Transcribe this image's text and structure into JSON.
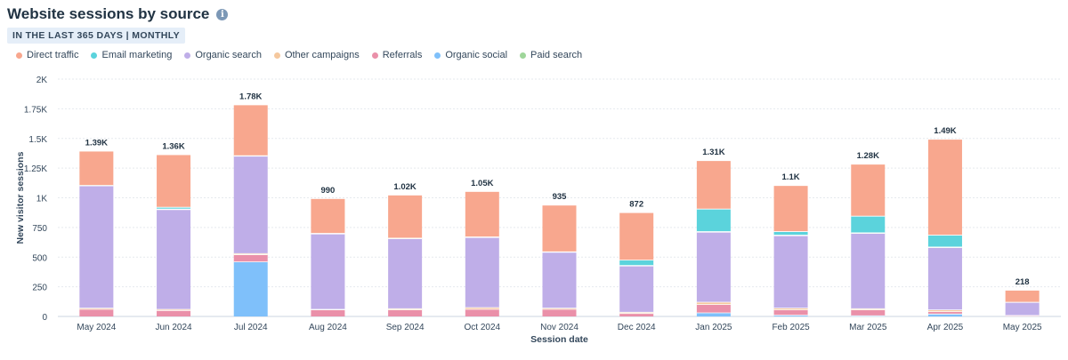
{
  "header": {
    "title": "Website sessions by source",
    "badge": "IN THE LAST 365 DAYS | MONTHLY"
  },
  "colors": {
    "Direct traffic": "#f8a78e",
    "Email marketing": "#5bd3dc",
    "Organic search": "#bfaee8",
    "Other campaigns": "#f5c89e",
    "Referrals": "#ea90a9",
    "Organic social": "#7fc0fa",
    "Paid search": "#9fd69a"
  },
  "chart_data": {
    "type": "bar",
    "stacked": true,
    "xlabel": "Session date",
    "ylabel": "New visitor sessions",
    "ylim": [
      0,
      2000
    ],
    "yticks": [
      "0",
      "250",
      "500",
      "750",
      "1K",
      "1.25K",
      "1.5K",
      "1.75K",
      "2K"
    ],
    "yticks_values": [
      0,
      250,
      500,
      750,
      1000,
      1250,
      1500,
      1750,
      2000
    ],
    "grid": true,
    "legend_position": "top-left",
    "categories": [
      "May 2024",
      "Jun 2024",
      "Jul 2024",
      "Aug 2024",
      "Sep 2024",
      "Oct 2024",
      "Nov 2024",
      "Dec 2024",
      "Jan 2025",
      "Feb 2025",
      "Mar 2025",
      "Apr 2025",
      "May 2025"
    ],
    "totals_labels": [
      "1.39K",
      "1.36K",
      "1.78K",
      "990",
      "1.02K",
      "1.05K",
      "935",
      "872",
      "1.31K",
      "1.1K",
      "1.28K",
      "1.49K",
      "218"
    ],
    "series": [
      {
        "name": "Organic social",
        "values": [
          0,
          0,
          460,
          0,
          0,
          0,
          0,
          0,
          30,
          10,
          5,
          20,
          0
        ]
      },
      {
        "name": "Referrals",
        "values": [
          60,
          50,
          60,
          55,
          55,
          60,
          60,
          25,
          70,
          45,
          50,
          20,
          5
        ]
      },
      {
        "name": "Other campaigns",
        "values": [
          10,
          10,
          10,
          5,
          10,
          15,
          10,
          10,
          20,
          15,
          10,
          15,
          3
        ]
      },
      {
        "name": "Organic search",
        "values": [
          1030,
          840,
          820,
          635,
          590,
          590,
          470,
          390,
          590,
          610,
          635,
          525,
          110
        ]
      },
      {
        "name": "Paid search",
        "values": [
          5,
          5,
          5,
          5,
          5,
          5,
          5,
          5,
          5,
          5,
          5,
          5,
          2
        ]
      },
      {
        "name": "Email marketing",
        "values": [
          0,
          15,
          0,
          0,
          0,
          0,
          0,
          45,
          190,
          30,
          140,
          100,
          0
        ]
      },
      {
        "name": "Direct traffic",
        "values": [
          285,
          440,
          425,
          290,
          360,
          380,
          390,
          397,
          405,
          385,
          435,
          805,
          98
        ]
      }
    ]
  },
  "legend": [
    "Direct traffic",
    "Email marketing",
    "Organic search",
    "Other campaigns",
    "Referrals",
    "Organic social",
    "Paid search"
  ]
}
